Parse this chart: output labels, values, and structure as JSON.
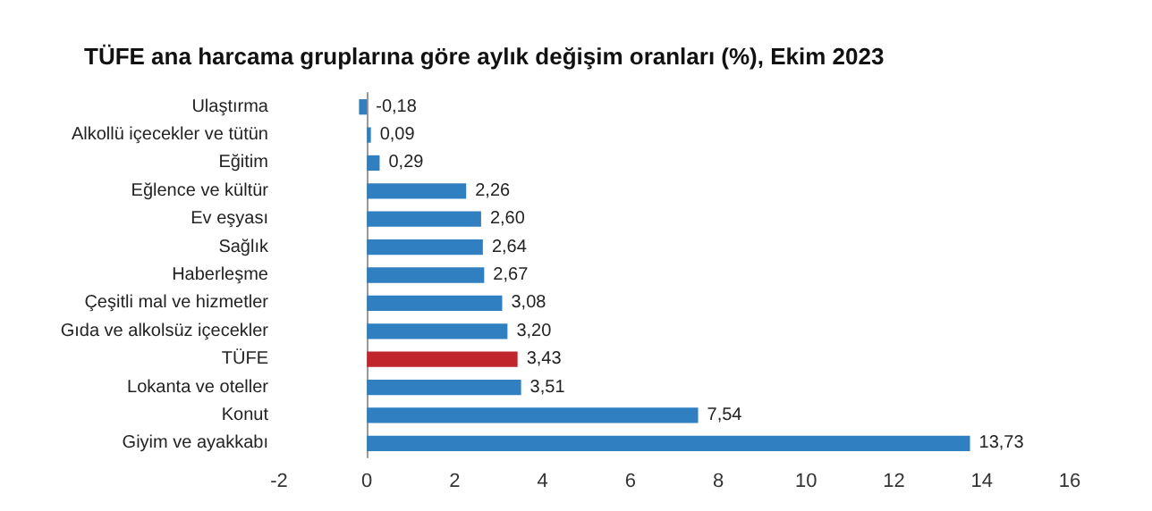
{
  "chart_data": {
    "type": "bar",
    "orientation": "horizontal",
    "title": "TÜFE ana harcama gruplarına göre aylık değişim oranları (%), Ekim 2023",
    "categories": [
      "Ulaştırma",
      "Alkollü içecekler ve tütün",
      "Eğitim",
      "Eğlence ve kültür",
      "Ev eşyası",
      "Sağlık",
      "Haberleşme",
      "Çeşitli mal ve hizmetler",
      "Gıda ve alkolsüz içecekler",
      "TÜFE",
      "Lokanta ve oteller",
      "Konut",
      "Giyim ve ayakkabı"
    ],
    "values": [
      -0.18,
      0.09,
      0.29,
      2.26,
      2.6,
      2.64,
      2.67,
      3.08,
      3.2,
      3.43,
      3.51,
      7.54,
      13.73
    ],
    "value_labels": [
      "-0,18",
      "0,09",
      "0,29",
      "2,26",
      "2,60",
      "2,64",
      "2,67",
      "3,08",
      "3,20",
      "3,43",
      "3,51",
      "7,54",
      "13,73"
    ],
    "colors": [
      "#2f7fc1",
      "#2f7fc1",
      "#2f7fc1",
      "#2f7fc1",
      "#2f7fc1",
      "#2f7fc1",
      "#2f7fc1",
      "#2f7fc1",
      "#2f7fc1",
      "#c0262c",
      "#2f7fc1",
      "#2f7fc1",
      "#2f7fc1"
    ],
    "xlim": [
      -2,
      16
    ],
    "xticks": [
      -2,
      0,
      2,
      4,
      6,
      8,
      10,
      12,
      14,
      16
    ]
  }
}
